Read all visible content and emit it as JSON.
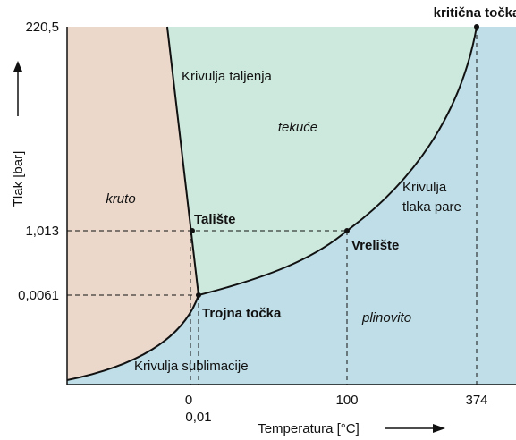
{
  "axes": {
    "y_title": "Tlak [bar]",
    "x_title": "Temperatura [°C]",
    "y_ticks": [
      "220,5",
      "1,013",
      "0,0061"
    ],
    "x_ticks": [
      "0",
      "0,01",
      "100",
      "374"
    ]
  },
  "regions": {
    "solid": "kruto",
    "liquid": "tekuće",
    "gas": "plinovito"
  },
  "curves": {
    "melting": "Krivulja taljenja",
    "vapor": [
      "Krivulja",
      "tlaka pare"
    ],
    "sublimation": "Krivulja sublimacije"
  },
  "points": {
    "critical": "kritična točka",
    "melting": "Talište",
    "boiling": "Vrelište",
    "triple": "Trojna točka"
  }
}
